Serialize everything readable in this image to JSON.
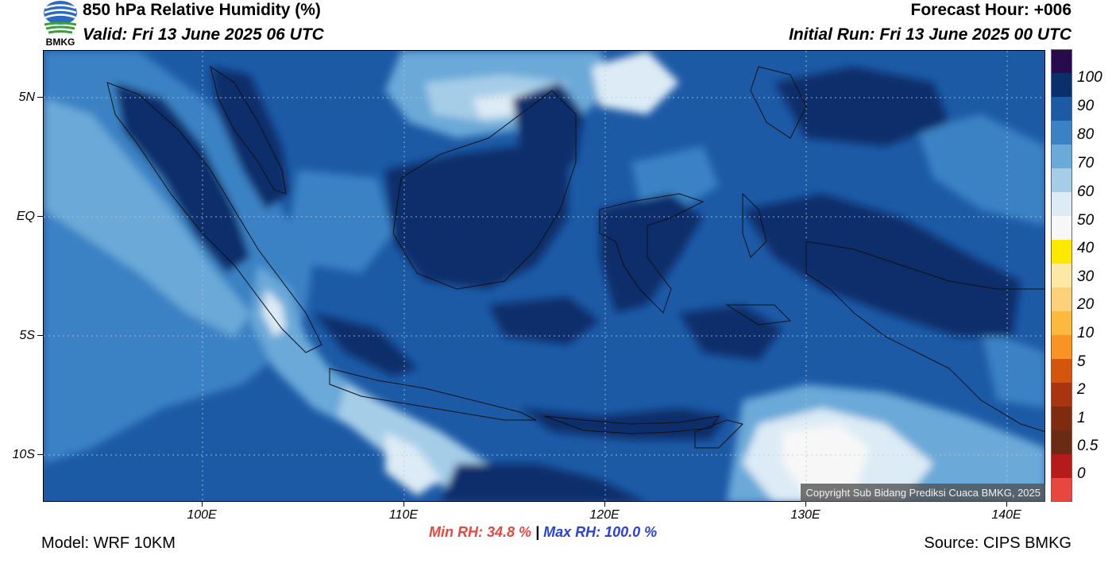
{
  "header": {
    "title": "850 hPa Relative Humidity (%)",
    "valid": "Valid: Fri 13 June 2025 06 UTC",
    "forecast_hour": "Forecast Hour: +006",
    "initial_run": "Initial Run: Fri 13 June 2025 00 UTC",
    "logo_text": "BMKG"
  },
  "map": {
    "lat_labels": [
      "5N",
      "EQ",
      "5S",
      "10S"
    ],
    "lon_labels": [
      "100E",
      "110E",
      "120E",
      "130E",
      "140E"
    ],
    "copyright": "Copyright Sub Bidang Prediksi Cuaca BMKG, 2025"
  },
  "stats": {
    "min": "Min RH:  34.8 %",
    "separator": "|",
    "max": "Max RH: 100.0 %"
  },
  "footer": {
    "model": "Model: WRF 10KM",
    "source": "Source: CIPS BMKG"
  },
  "colorbar": {
    "labels": [
      "100",
      "90",
      "80",
      "70",
      "60",
      "50",
      "40",
      "30",
      "20",
      "10",
      "5",
      "2",
      "1",
      "0.5",
      "0"
    ],
    "colors": [
      "#2a0a4e",
      "#0b2f6b",
      "#1d5aa6",
      "#3b82c4",
      "#6aa9d8",
      "#a6cde8",
      "#dcebf5",
      "#f7f7f7",
      "#fde800",
      "#fee8a6",
      "#fdd17a",
      "#fbb93f",
      "#f99325",
      "#d4560d",
      "#a8350f",
      "#7f2b10",
      "#6b2a14",
      "#b61b1c",
      "#e8473f"
    ]
  }
}
